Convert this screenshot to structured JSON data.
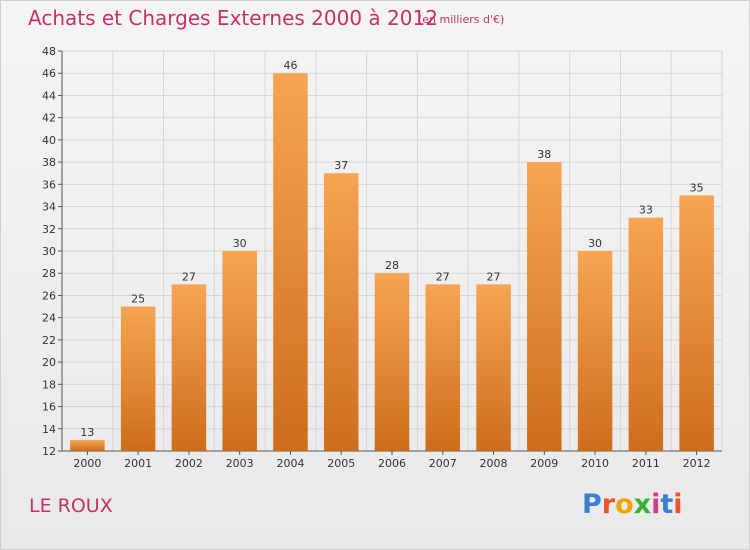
{
  "title": "Achats et Charges Externes 2000 à 2012",
  "unit_note": "(en milliers d'€)",
  "place_label": "LE ROUX",
  "logo": {
    "text": "Proxiti",
    "letter_colors": [
      "#3a7fd1",
      "#e8542b",
      "#f0a400",
      "#3cae3c",
      "#d23b8c",
      "#3a7fd1",
      "#e8542b"
    ]
  },
  "colors": {
    "title": "#c8306a",
    "bar_top": "#f6a552",
    "bar_bottom": "#cd6d1c",
    "grid": "#d6d6d6"
  },
  "chart_data": {
    "type": "bar",
    "title": "Achats et Charges Externes 2000 à 2012",
    "subtitle": "(en milliers d'€)",
    "xlabel": "",
    "ylabel": "",
    "categories": [
      "2000",
      "2001",
      "2002",
      "2003",
      "2004",
      "2005",
      "2006",
      "2007",
      "2008",
      "2009",
      "2010",
      "2011",
      "2012"
    ],
    "values": [
      13,
      25,
      27,
      30,
      46,
      37,
      28,
      27,
      27,
      38,
      30,
      33,
      35
    ],
    "ylim": [
      12,
      48
    ],
    "yticks": [
      12,
      14,
      16,
      18,
      20,
      22,
      24,
      26,
      28,
      30,
      32,
      34,
      36,
      38,
      40,
      42,
      44,
      46,
      48
    ],
    "grid": true,
    "data_labels": true
  }
}
